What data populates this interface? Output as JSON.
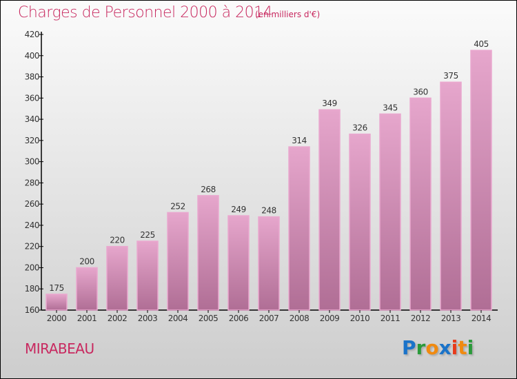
{
  "chart_data": {
    "type": "bar",
    "title": "Charges de Personnel 2000 à 2014",
    "subtitle": "(en milliers d'€)",
    "xlabel": "",
    "ylabel": "",
    "categories": [
      "2000",
      "2001",
      "2002",
      "2003",
      "2004",
      "2005",
      "2006",
      "2007",
      "2008",
      "2009",
      "2010",
      "2011",
      "2012",
      "2013",
      "2014"
    ],
    "values": [
      175,
      200,
      220,
      225,
      252,
      268,
      249,
      248,
      314,
      349,
      326,
      345,
      360,
      375,
      405
    ],
    "ylim": [
      160,
      420
    ],
    "yticks": [
      160,
      180,
      200,
      220,
      240,
      260,
      280,
      300,
      320,
      340,
      360,
      380,
      400,
      420
    ],
    "grid": false,
    "bar_color_top": "#e6a6cc",
    "bar_color_bottom": "#b06e95"
  },
  "city": "MIRABEAU",
  "logo": {
    "text": "Proxiti",
    "letters": [
      {
        "c": "P",
        "color": "#1a73c9"
      },
      {
        "c": "r",
        "color": "#2a9a3a"
      },
      {
        "c": "o",
        "color": "#f08a10"
      },
      {
        "c": "x",
        "color": "#1a73c9"
      },
      {
        "c": "i",
        "color": "#e83a1a"
      },
      {
        "c": "t",
        "color": "#f08a10"
      },
      {
        "c": "i",
        "color": "#2a9a3a"
      }
    ]
  }
}
